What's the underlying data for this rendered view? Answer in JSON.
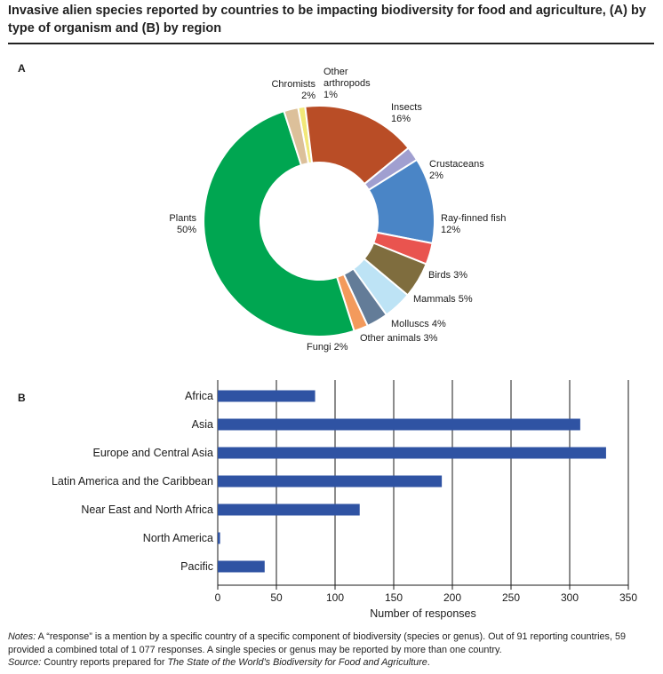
{
  "title": "Invasive alien species reported by countries to be impacting biodiversity for food and agriculture, (A) by type of organism and (B) by region",
  "panel_a_letter": "A",
  "panel_b_letter": "B",
  "chart_data": [
    {
      "type": "pie",
      "donut": true,
      "title": "",
      "slices": [
        {
          "name": "Other arthropods",
          "label_lines": [
            "Other",
            "arthropods",
            "1%"
          ],
          "value": 1,
          "color": "#f2e878"
        },
        {
          "name": "Insects",
          "label_lines": [
            "Insects",
            "16%"
          ],
          "value": 16,
          "color": "#b94d26"
        },
        {
          "name": "Crustaceans",
          "label_lines": [
            "Crustaceans",
            "2%"
          ],
          "value": 2,
          "color": "#a09fd0"
        },
        {
          "name": "Ray-finned fish",
          "label_lines": [
            "Ray-finned fish",
            "12%"
          ],
          "value": 12,
          "color": "#4a85c6"
        },
        {
          "name": "Birds",
          "label_lines": [
            "Birds 3%"
          ],
          "value": 3,
          "color": "#e9544f"
        },
        {
          "name": "Mammals",
          "label_lines": [
            "Mammals 5%"
          ],
          "value": 5,
          "color": "#7f6d3e"
        },
        {
          "name": "Molluscs",
          "label_lines": [
            "Molluscs 4%"
          ],
          "value": 4,
          "color": "#bde3f5"
        },
        {
          "name": "Other animals",
          "label_lines": [
            "Other animals 3%"
          ],
          "value": 3,
          "color": "#637c98"
        },
        {
          "name": "Fungi",
          "label_lines": [
            "Fungi 2%"
          ],
          "value": 2,
          "color": "#f39a5c"
        },
        {
          "name": "Plants",
          "label_lines": [
            "Plants",
            "50%"
          ],
          "value": 50,
          "color": "#00a651"
        },
        {
          "name": "Chromists",
          "label_lines": [
            "Chromists",
            "2%"
          ],
          "value": 2,
          "color": "#dcc09a"
        }
      ]
    },
    {
      "type": "bar",
      "orientation": "horizontal",
      "title": "",
      "categories": [
        "Africa",
        "Asia",
        "Europe and Central Asia",
        "Latin America and the Caribbean",
        "Near East and North Africa",
        "North America",
        "Pacific"
      ],
      "values": [
        83,
        309,
        331,
        191,
        121,
        2,
        40
      ],
      "xlabel": "Number of responses",
      "ylabel": "",
      "xlim": [
        0,
        350
      ],
      "xticks": [
        0,
        50,
        100,
        150,
        200,
        250,
        300,
        350
      ],
      "bar_color": "#2f53a3",
      "grid": true
    }
  ],
  "notes": {
    "notes_label": "Notes:",
    "notes_text": " A “response” is a mention by a specific country of a specific component of biodiversity (species or genus). Out of 91 reporting countries, 59 provided a combined total of 1 077 responses. A single species or genus may be reported by more than one country.",
    "source_label": "Source:",
    "source_text": " Country reports prepared for ",
    "source_italic": "The State of the World’s Biodiversity for Food and Agriculture",
    "source_end": "."
  }
}
